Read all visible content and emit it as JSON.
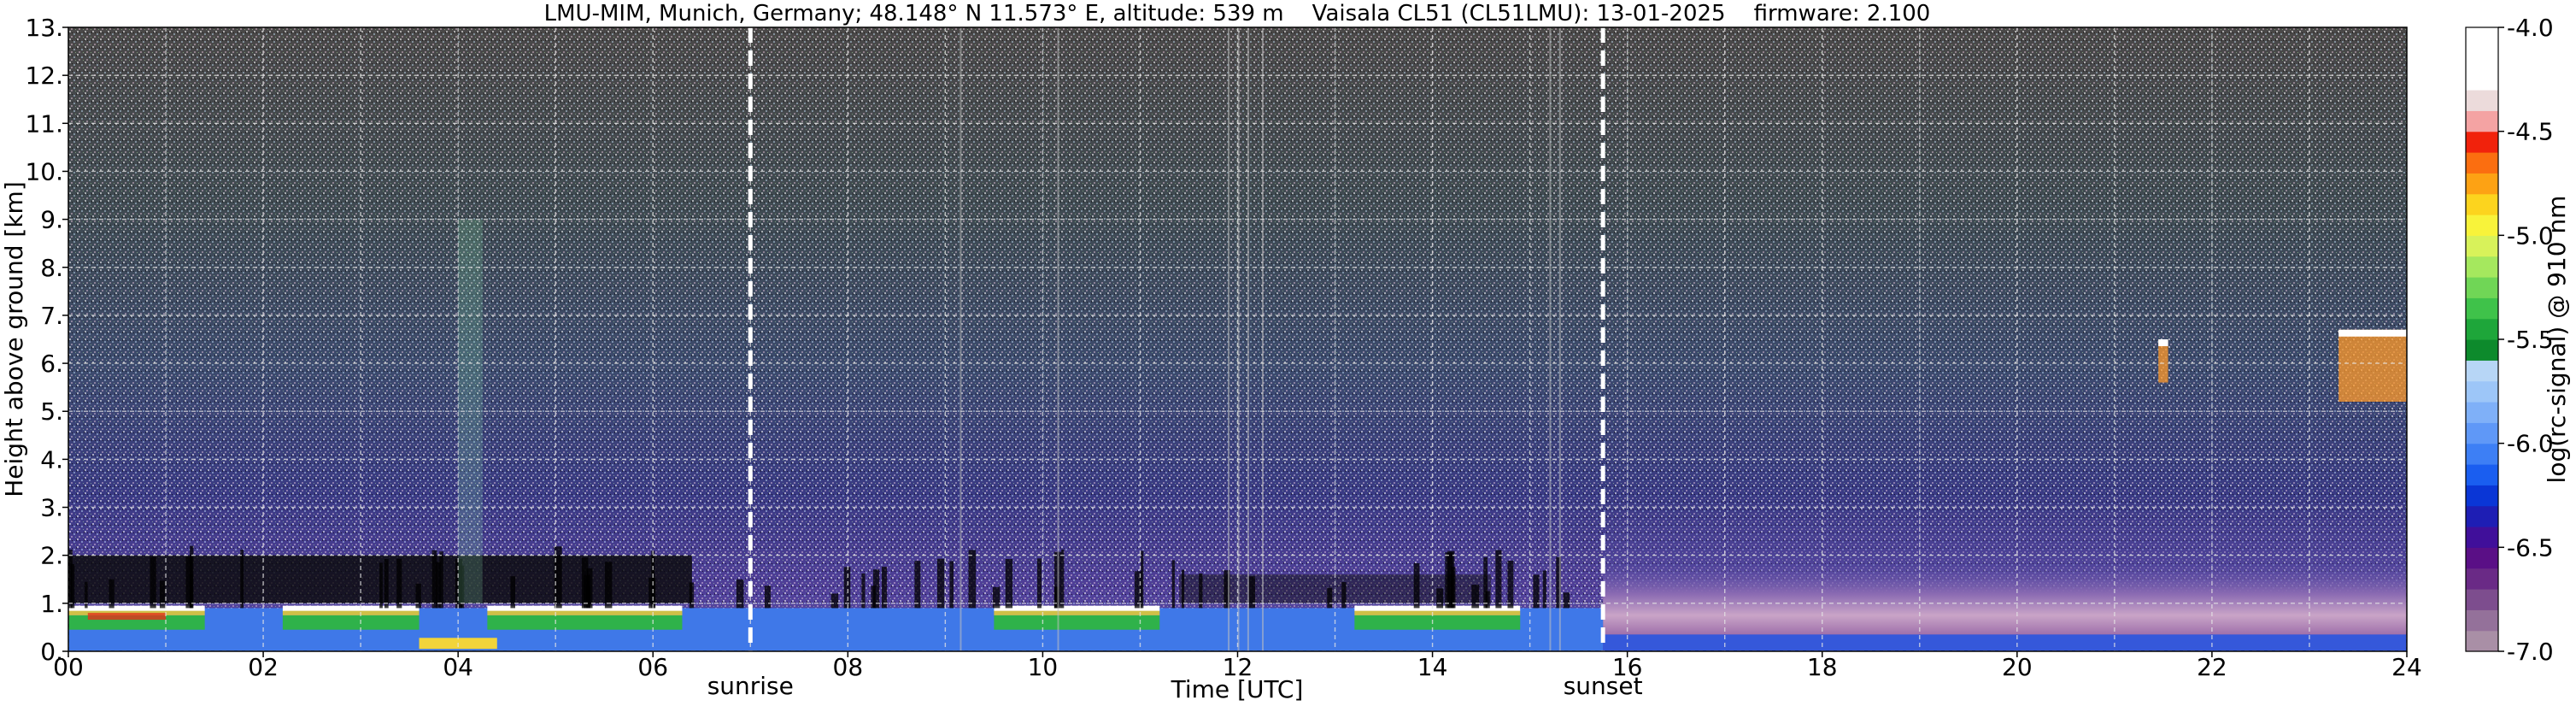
{
  "chart_data": {
    "type": "heatmap",
    "title": "LMU-MIM, Munich, Germany; 48.148° N 11.573° E, altitude: 539 m    Vaisala CL51 (CL51LMU): 13-01-2025    firmware: 2.100",
    "xlabel": "Time [UTC]",
    "ylabel": "Height above ground [km]",
    "xlim": [
      0,
      24
    ],
    "ylim": [
      0,
      13
    ],
    "x_ticks": [
      "00",
      "02",
      "04",
      "06",
      "08",
      "10",
      "12",
      "14",
      "16",
      "18",
      "20",
      "22",
      "24"
    ],
    "y_ticks": [
      "0.",
      "1.",
      "2.",
      "3.",
      "4.",
      "5.",
      "6.",
      "7.",
      "8.",
      "9.",
      "10.",
      "11.",
      "12.",
      "13."
    ],
    "grid": true,
    "colorbar": {
      "label": "log(rc-signal) @ 910 nm",
      "range": [
        -7.0,
        -4.0
      ],
      "ticks": [
        "-4.0",
        "-4.5",
        "-5.0",
        "-5.5",
        "-6.0",
        "-6.5",
        "-7.0"
      ],
      "tick_values": [
        -4.0,
        -4.5,
        -5.0,
        -5.5,
        -6.0,
        -6.5,
        -7.0
      ],
      "colors": [
        "#a98fa6",
        "#94719a",
        "#7d4d8e",
        "#6a2a86",
        "#5a0f86",
        "#400f9a",
        "#1e1eb4",
        "#0a36d6",
        "#1a5ef0",
        "#3d7ff5",
        "#5f98f7",
        "#7fb0f8",
        "#9dc6f8",
        "#b7d6f6",
        "#0d8a2c",
        "#1ea63a",
        "#3fc24a",
        "#70d656",
        "#a5e85e",
        "#d8f25a",
        "#f8f33a",
        "#fcd41e",
        "#fda214",
        "#fb6e10",
        "#f1220c",
        "#f4a3a3",
        "#ecdbdb",
        "#ffffff",
        "#ffffff",
        "#ffffff"
      ]
    },
    "annotations": [
      {
        "label": "sunrise",
        "x": 7.0
      },
      {
        "label": "sunset",
        "x": 15.75
      }
    ],
    "features": {
      "cloud_base_top_km": 0.9,
      "cirrus_patches": [
        {
          "x0": 21.45,
          "x1": 21.55,
          "y0": 5.6,
          "y1": 6.5
        },
        {
          "x0": 23.3,
          "x1": 24.0,
          "y0": 5.2,
          "y1": 6.7
        }
      ]
    }
  }
}
